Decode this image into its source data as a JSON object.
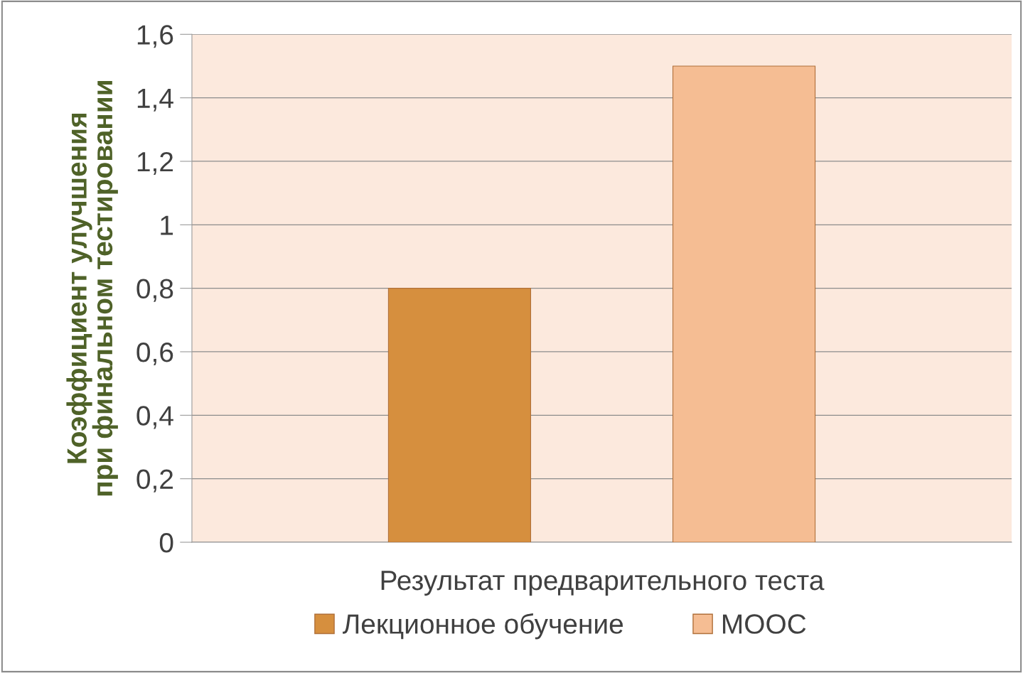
{
  "chart_data": {
    "type": "bar",
    "categories": [
      "Результат предварительного теста"
    ],
    "ylabel": "Коэффициент улучшения при финальном тестировании",
    "series": [
      {
        "name": "Лекционное обучение",
        "color": "#d68f3e",
        "values": [
          0.8
        ]
      },
      {
        "name": "МООС",
        "color": "#f5bd93",
        "values": [
          1.5
        ]
      }
    ],
    "ylim": [
      0,
      1.6
    ],
    "yticks": [
      {
        "value": 0,
        "label": "0"
      },
      {
        "value": 0.2,
        "label": "0,2"
      },
      {
        "value": 0.4,
        "label": "0,4"
      },
      {
        "value": 0.6,
        "label": "0,6"
      },
      {
        "value": 0.8,
        "label": "0,8"
      },
      {
        "value": 1,
        "label": "1"
      },
      {
        "value": 1.2,
        "label": "1,2"
      },
      {
        "value": 1.4,
        "label": "1,4"
      },
      {
        "value": 1.6,
        "label": "1,6"
      }
    ],
    "grid": "y",
    "legend": "bottom"
  }
}
